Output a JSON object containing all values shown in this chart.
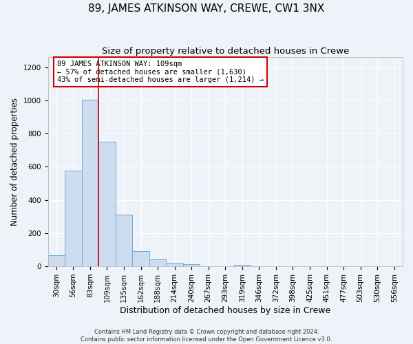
{
  "title": "89, JAMES ATKINSON WAY, CREWE, CW1 3NX",
  "subtitle": "Size of property relative to detached houses in Crewe",
  "xlabel": "Distribution of detached houses by size in Crewe",
  "ylabel": "Number of detached properties",
  "bin_labels": [
    "30sqm",
    "56sqm",
    "83sqm",
    "109sqm",
    "135sqm",
    "162sqm",
    "188sqm",
    "214sqm",
    "240sqm",
    "267sqm",
    "293sqm",
    "319sqm",
    "346sqm",
    "372sqm",
    "398sqm",
    "425sqm",
    "451sqm",
    "477sqm",
    "503sqm",
    "530sqm",
    "556sqm"
  ],
  "bar_values": [
    65,
    575,
    1005,
    750,
    310,
    90,
    40,
    22,
    13,
    0,
    0,
    10,
    0,
    0,
    0,
    0,
    0,
    0,
    0,
    0,
    0
  ],
  "bar_color": "#cddcee",
  "bar_edge_color": "#6baed6",
  "vline_color": "#cc0000",
  "annotation_text": "89 JAMES ATKINSON WAY: 109sqm\n← 57% of detached houses are smaller (1,630)\n43% of semi-detached houses are larger (1,214) →",
  "annotation_box_color": "white",
  "annotation_box_edge_color": "#cc0000",
  "ylim": [
    0,
    1260
  ],
  "yticks": [
    0,
    200,
    400,
    600,
    800,
    1000,
    1200
  ],
  "footer_line1": "Contains HM Land Registry data © Crown copyright and database right 2024.",
  "footer_line2": "Contains public sector information licensed under the Open Government Licence v3.0.",
  "background_color": "#eef2f9",
  "grid_color": "#ffffff",
  "title_fontsize": 11,
  "subtitle_fontsize": 9.5,
  "xlabel_fontsize": 9,
  "ylabel_fontsize": 8.5,
  "tick_fontsize": 7.5,
  "annot_fontsize": 7.5,
  "footer_fontsize": 6
}
